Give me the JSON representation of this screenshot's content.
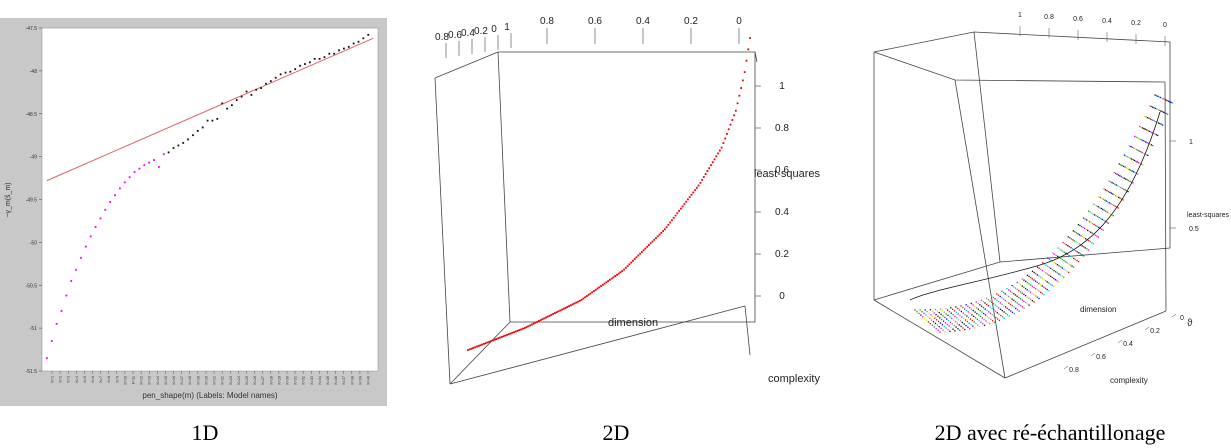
{
  "captions": [
    "1D",
    "2D",
    "2D avec ré-échantillonage"
  ],
  "chart_data": [
    {
      "type": "scatter",
      "title": "",
      "xlabel": "pen_shape(m) (Labels: Model names)",
      "ylabel": "−γ_m(ŝ_m)",
      "ylim": [
        -51.5,
        -47.5
      ],
      "y_ticks": [
        -47.5,
        -48,
        -48.5,
        -49,
        -49.5,
        -50,
        -50.5,
        -51,
        -51.5
      ],
      "x_tick_labels": [
        "K=1",
        "K=2",
        "K=3",
        "K=4",
        "K=5",
        "K=6",
        "K=7",
        "K=8",
        "K=9",
        "K=10",
        "K=11",
        "K=12",
        "K=13",
        "K=14",
        "K=15",
        "K=16",
        "K=17",
        "K=18",
        "K=19",
        "K=20",
        "K=21",
        "K=22",
        "K=23",
        "K=24",
        "K=25",
        "K=26",
        "K=27",
        "K=28",
        "K=29",
        "K=30",
        "K=31",
        "K=32",
        "K=33",
        "K=34",
        "K=35",
        "K=36",
        "K=37",
        "K=38",
        "K=39",
        "K=40"
      ],
      "colors": {
        "fit_line": "#e06060",
        "selected_points": "#111111",
        "other_points": "#ee00ee",
        "background": "#c8c8c8"
      },
      "series": [
        {
          "x": [
            1,
            2,
            3,
            4,
            5,
            6,
            7,
            8,
            9,
            10,
            11,
            12,
            13,
            14,
            15,
            16,
            17,
            18,
            19,
            20,
            21,
            22,
            23,
            24,
            25
          ],
          "values": [
            -51.35,
            -51.15,
            -50.95,
            -50.8,
            -50.62,
            -50.45,
            -50.32,
            -50.18,
            -50.05,
            -49.93,
            -49.82,
            -49.72,
            -49.62,
            -49.53,
            -49.45,
            -49.37,
            -49.3,
            -49.24,
            -49.18,
            -49.14,
            -49.1,
            -49.07,
            -49.04,
            -49.12,
            -48.97
          ]
        },
        {
          "x": [
            26,
            27,
            28,
            29,
            30,
            31,
            32,
            33,
            34,
            35,
            36,
            37,
            38,
            39,
            40,
            41,
            42,
            43,
            44,
            45,
            46,
            47,
            48,
            49,
            50,
            51,
            52,
            53,
            54,
            55,
            56,
            57,
            58,
            59,
            60,
            61,
            62,
            63,
            64,
            65,
            66,
            67
          ],
          "values": [
            -48.95,
            -48.9,
            -48.87,
            -48.84,
            -48.8,
            -48.75,
            -48.7,
            -48.66,
            -48.58,
            -48.58,
            -48.56,
            -48.38,
            -48.44,
            -48.4,
            -48.34,
            -48.3,
            -48.24,
            -48.28,
            -48.22,
            -48.2,
            -48.15,
            -48.12,
            -48.08,
            -48.04,
            -48.02,
            -48.01,
            -47.98,
            -47.94,
            -47.92,
            -47.9,
            -47.86,
            -47.86,
            -47.84,
            -47.8,
            -47.8,
            -47.76,
            -47.74,
            -47.72,
            -47.68,
            -47.66,
            -47.62,
            -47.58
          ]
        }
      ],
      "fit_line": {
        "x": [
          1,
          68
        ],
        "y": [
          -49.28,
          -47.62
        ]
      }
    },
    {
      "type": "scatter",
      "title": "",
      "xlabel": "dimension",
      "ylabel": "least-squares",
      "zlabel": "complexity",
      "top_ticks": [
        "0.8",
        "0.6",
        "0.4",
        "0.2",
        "0"
      ],
      "top_ticks_left": [
        "0.8",
        "0.6",
        "0.4",
        "0.2",
        "0",
        "1"
      ],
      "z_ticks": [
        "1",
        "0.8",
        "0.6",
        "0.4",
        "0.2",
        "0"
      ],
      "colors": {
        "points": "#ee0000"
      },
      "points_count": 160,
      "curve_shape": [
        [
          0.0,
          0.02
        ],
        [
          0.2,
          0.08
        ],
        [
          0.4,
          0.16
        ],
        [
          0.55,
          0.25
        ],
        [
          0.7,
          0.38
        ],
        [
          0.82,
          0.52
        ],
        [
          0.9,
          0.64
        ],
        [
          0.95,
          0.76
        ],
        [
          0.98,
          0.88
        ],
        [
          1.0,
          1.0
        ]
      ]
    },
    {
      "type": "scatter",
      "title": "",
      "xlabel": "dimension",
      "ylabel": "least-squares",
      "zlabel": "complexity",
      "top_ticks": [
        "1",
        "0.8",
        "0.6",
        "0.4",
        "0.2",
        "0"
      ],
      "right_ticks": [
        "1",
        "0.5"
      ],
      "complexity_ticks": [
        "0.8",
        "0.6",
        "0.4",
        "0.2",
        "0"
      ],
      "colors": {
        "series_palette": [
          "#111111",
          "#ee0000",
          "#00aa00",
          "#0000ee",
          "#00cccc",
          "#ee00ee",
          "#dddd00",
          "#888888"
        ]
      }
    }
  ]
}
